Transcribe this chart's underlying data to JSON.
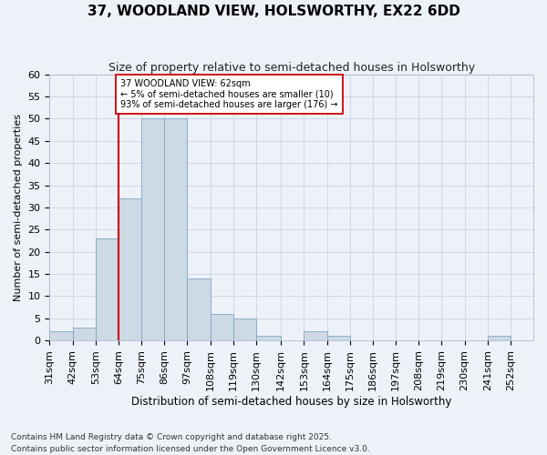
{
  "title": "37, WOODLAND VIEW, HOLSWORTHY, EX22 6DD",
  "subtitle": "Size of property relative to semi-detached houses in Holsworthy",
  "xlabel": "Distribution of semi-detached houses by size in Holsworthy",
  "ylabel": "Number of semi-detached properties",
  "footer": "Contains HM Land Registry data © Crown copyright and database right 2025.\nContains public sector information licensed under the Open Government Licence v3.0.",
  "bar_color": "#cdd9e5",
  "bar_edge_color": "#7da8c0",
  "background_color": "#edf2f9",
  "categories": [
    "31sqm",
    "42sqm",
    "53sqm",
    "64sqm",
    "75sqm",
    "86sqm",
    "97sqm",
    "108sqm",
    "119sqm",
    "130sqm",
    "142sqm",
    "153sqm",
    "164sqm",
    "175sqm",
    "186sqm",
    "197sqm",
    "208sqm",
    "219sqm",
    "230sqm",
    "241sqm",
    "252sqm"
  ],
  "values": [
    2,
    3,
    23,
    32,
    50,
    50,
    14,
    6,
    5,
    1,
    0,
    2,
    1,
    0,
    0,
    0,
    0,
    0,
    0,
    1,
    0
  ],
  "bin_edges": [
    31,
    42,
    53,
    64,
    75,
    86,
    97,
    108,
    119,
    130,
    142,
    153,
    164,
    175,
    186,
    197,
    208,
    219,
    230,
    241,
    252,
    263
  ],
  "ylim": [
    0,
    60
  ],
  "yticks": [
    0,
    5,
    10,
    15,
    20,
    25,
    30,
    35,
    40,
    45,
    50,
    55,
    60
  ],
  "red_line_x": 64,
  "annotation_text": "37 WOODLAND VIEW: 62sqm\n← 5% of semi-detached houses are smaller (10)\n93% of semi-detached houses are larger (176) →",
  "annotation_box_color": "#ffffff",
  "annotation_box_edge_color": "#cc0000",
  "annotation_text_color": "#000000",
  "red_line_color": "#cc0000",
  "title_fontsize": 11,
  "subtitle_fontsize": 9,
  "ylabel_fontsize": 8,
  "xlabel_fontsize": 8.5,
  "footer_fontsize": 6.5,
  "tick_fontsize": 8
}
